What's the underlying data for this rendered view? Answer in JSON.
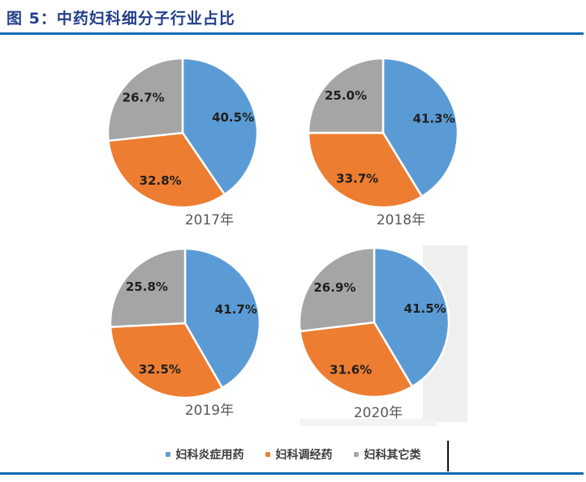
{
  "header": {
    "title": "图 5：中药妇科细分子行业占比"
  },
  "chart_data": {
    "type": "pie",
    "title": "中药妇科细分子行业占比",
    "legend_position": "bottom",
    "start_angle_deg": 0,
    "direction": "clockwise",
    "series": [
      {
        "name": "妇科炎症用药",
        "color": "#5B9BD5"
      },
      {
        "name": "妇科调经药",
        "color": "#ED7D31"
      },
      {
        "name": "妇科其它类",
        "color": "#A5A5A5"
      }
    ],
    "charts": [
      {
        "year": "2017年",
        "values": [
          40.5,
          32.8,
          26.7
        ],
        "labels": [
          "40.5%",
          "32.8%",
          "26.7%"
        ]
      },
      {
        "year": "2018年",
        "values": [
          41.3,
          33.7,
          25.0
        ],
        "labels": [
          "41.3%",
          "33.7%",
          "25.0%"
        ]
      },
      {
        "year": "2019年",
        "values": [
          41.7,
          32.5,
          25.8
        ],
        "labels": [
          "41.7%",
          "32.5%",
          "25.8%"
        ]
      },
      {
        "year": "2020年",
        "values": [
          41.5,
          31.6,
          26.9
        ],
        "labels": [
          "41.5%",
          "31.6%",
          "26.9%"
        ]
      }
    ],
    "accent_colors": {
      "title_text": "#223F8A",
      "rule": "#1168B5",
      "slice_label": "#1f1f1f",
      "caption": "#595959"
    }
  }
}
